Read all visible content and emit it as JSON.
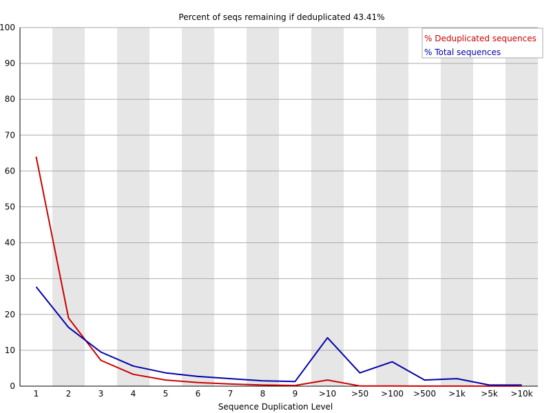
{
  "chart_data": {
    "type": "line",
    "title": "Percent of seqs remaining if deduplicated 43.41%",
    "xlabel": "Sequence Duplication Level",
    "ylabel": "",
    "ylim": [
      0,
      100
    ],
    "yticks": [
      0,
      10,
      20,
      30,
      40,
      50,
      60,
      70,
      80,
      90,
      100
    ],
    "categories": [
      "1",
      "2",
      "3",
      "4",
      "5",
      "6",
      "7",
      "8",
      "9",
      ">10",
      ">50",
      ">100",
      ">500",
      ">1k",
      ">5k",
      ">10k"
    ],
    "series": [
      {
        "name": "% Deduplicated sequences",
        "color": "#cc0000",
        "values": [
          64.0,
          19.0,
          7.2,
          3.3,
          1.7,
          1.0,
          0.6,
          0.3,
          0.2,
          1.7,
          0.05,
          0.05,
          0.02,
          0.02,
          0.01,
          0.01
        ]
      },
      {
        "name": "% Total sequences",
        "color": "#0000aa",
        "values": [
          27.7,
          16.4,
          9.5,
          5.6,
          3.7,
          2.7,
          2.1,
          1.5,
          1.3,
          13.5,
          3.7,
          6.8,
          1.7,
          2.1,
          0.3,
          0.3
        ]
      }
    ],
    "grid": true,
    "legend_position": "top-right",
    "band_color": "#e6e6e6",
    "grid_color": "#aaaaaa"
  }
}
